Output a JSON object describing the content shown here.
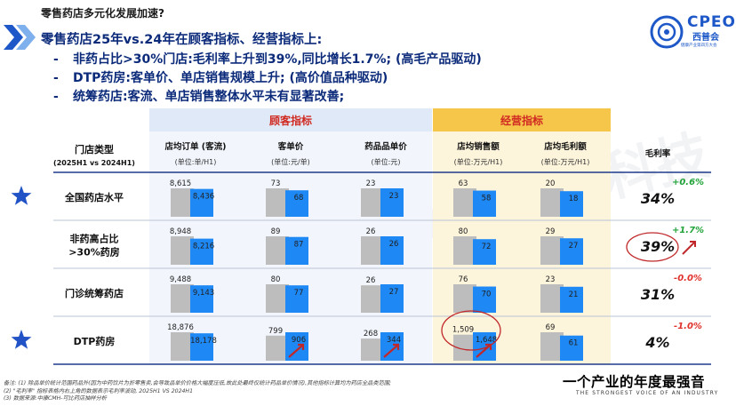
{
  "header": {
    "subtitle": "零售药店多元化发展加速?",
    "headline": "零售药店25年vs.24年在顾客指标、经营指标上:",
    "bullets": [
      {
        "dash": "-",
        "text": "非药占比>30%门店:毛利率上升到39%,同比增长1.7%; (高毛产品驱动)"
      },
      {
        "dash": "-",
        "text": "DTP药房:客单价、单店销售规模上升; (高价值品种驱动)"
      },
      {
        "dash": "-",
        "text": "统筹药店:客流、单店销售整体水平未有显著改善;"
      }
    ]
  },
  "logo": {
    "name": "CPEO",
    "cn": "西普会",
    "sub": "健康产业第四方大会"
  },
  "colors": {
    "accent": "#1e58c8",
    "bar_2024": "#bdbdbd",
    "bar_2025": "#1e88f5",
    "customer_header": "#dfe9f7",
    "operation_header": "#f6c64a",
    "up": "#22a33a",
    "down": "#e0312a"
  },
  "table": {
    "group_customer": "顾客指标",
    "group_operation": "经营指标",
    "store_type_label": "门店类型",
    "period_label": "(2025H1 vs 2024H1)",
    "columns": [
      {
        "title": "店均订单 (客流)",
        "unit": "(单位:单/H1)"
      },
      {
        "title": "客单价",
        "unit": "(单位:元/单)"
      },
      {
        "title": "药品品单价",
        "unit": "(单位:元)"
      },
      {
        "title": "店均销售额",
        "unit": "(单位:万元/H1)"
      },
      {
        "title": "店均毛利额",
        "unit": "(单位:万元/H1)"
      },
      {
        "title": "毛利率",
        "unit": ""
      }
    ],
    "rows": [
      {
        "label": "全国药店水平",
        "star": true,
        "margin": "34%",
        "change": "+0.6%",
        "change_dir": "up"
      },
      {
        "label": "非药高占比\n>30%药房",
        "star": false,
        "margin": "39%",
        "change": "+1.7%",
        "change_dir": "up"
      },
      {
        "label": "门诊统筹药店",
        "star": false,
        "margin": "31%",
        "change": "-0.0%",
        "change_dir": "down"
      },
      {
        "label": "DTP药房",
        "star": true,
        "margin": "4%",
        "change": "-1.0%",
        "change_dir": "down"
      }
    ]
  },
  "chart_data": {
    "type": "bar",
    "series_names": [
      "2024H1",
      "2025H1"
    ],
    "metrics": [
      "店均订单 (客流)",
      "客单价",
      "药品品单价",
      "店均销售额",
      "店均毛利额"
    ],
    "rows": [
      {
        "store_type": "全国药店水平",
        "values": [
          [
            8615,
            8436
          ],
          [
            73,
            68
          ],
          [
            23,
            23
          ],
          [
            63,
            58
          ],
          [
            20,
            18
          ]
        ],
        "labels": [
          [
            "8,615",
            "8,436"
          ],
          [
            "73",
            "68"
          ],
          [
            "23",
            "23"
          ],
          [
            "63",
            "58"
          ],
          [
            "20",
            "18"
          ]
        ]
      },
      {
        "store_type": "非药高占比>30%药房",
        "values": [
          [
            8948,
            8216
          ],
          [
            89,
            87
          ],
          [
            26,
            26
          ],
          [
            80,
            72
          ],
          [
            29,
            27
          ]
        ],
        "labels": [
          [
            "8,948",
            "8,216"
          ],
          [
            "89",
            "87"
          ],
          [
            "26",
            "26"
          ],
          [
            "80",
            "72"
          ],
          [
            "29",
            "27"
          ]
        ]
      },
      {
        "store_type": "门诊统筹药店",
        "values": [
          [
            9488,
            9143
          ],
          [
            80,
            77
          ],
          [
            26,
            27
          ],
          [
            76,
            70
          ],
          [
            23,
            21
          ]
        ],
        "labels": [
          [
            "9,488",
            "9,143"
          ],
          [
            "80",
            "77"
          ],
          [
            "26",
            "27"
          ],
          [
            "76",
            "70"
          ],
          [
            "23",
            "21"
          ]
        ]
      },
      {
        "store_type": "DTP药房",
        "values": [
          [
            18876,
            18178
          ],
          [
            799,
            906
          ],
          [
            268,
            344
          ],
          [
            1509,
            1648
          ],
          [
            69,
            61
          ]
        ],
        "labels": [
          [
            "18,876",
            "18,178"
          ],
          [
            "799",
            "906"
          ],
          [
            "268",
            "344"
          ],
          [
            "1,509",
            "1,648"
          ],
          [
            "69",
            "61"
          ]
        ]
      }
    ],
    "gross_margin": [
      "34%",
      "39%",
      "31%",
      "4%"
    ],
    "gross_margin_change": [
      "+0.6%",
      "+1.7%",
      "-0.0%",
      "-1.0%"
    ]
  },
  "notes": [
    "备注: (1) 除品单价统计范围药品外(因为中药饮片为折零售卖,会导致品单价价格大幅度压低,故此处最终仅统计药品单价情况),其他指标计算均为药店全品类范围;",
    "(2) \"毛利率\" 指标表格内右上角的数据表示毛利率波动, 2025H1 VS 2024H1",
    "(3) 数据来源:中康CMH-可比药店抽样分析"
  ],
  "slogan": "一个产业的年度最强音",
  "slogan_en": "THE STRONGEST VOICE OF AN INDUSTRY",
  "watermark_text": "Sinohealth 中康科技"
}
